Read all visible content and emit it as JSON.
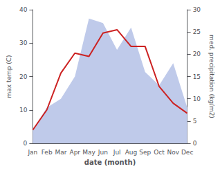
{
  "chart_data": {
    "type": "line",
    "xlabel": "date (month)",
    "ylabel": "max temp (C)",
    "y2label": "med. precipitation (kg/m2)",
    "categories": [
      "Jan",
      "Feb",
      "Mar",
      "Apr",
      "May",
      "Jun",
      "Jul",
      "Aug",
      "Sep",
      "Oct",
      "Nov",
      "Dec"
    ],
    "series": [
      {
        "type": "area",
        "color": "#b8c4e8",
        "axis": "y2",
        "values": [
          3,
          8,
          10,
          15,
          28,
          27,
          21,
          26,
          16,
          13,
          18,
          8
        ]
      },
      {
        "type": "line",
        "color": "#cc2222",
        "values": [
          4,
          10,
          21,
          27,
          26,
          33,
          34,
          29,
          29,
          17,
          12,
          9
        ]
      }
    ],
    "ylim": [
      0,
      40
    ],
    "yticks": [
      0,
      10,
      20,
      30,
      40
    ],
    "y2lim": [
      0,
      30
    ],
    "y2ticks": [
      0,
      5,
      10,
      15,
      20,
      25,
      30
    ],
    "grid": false
  }
}
